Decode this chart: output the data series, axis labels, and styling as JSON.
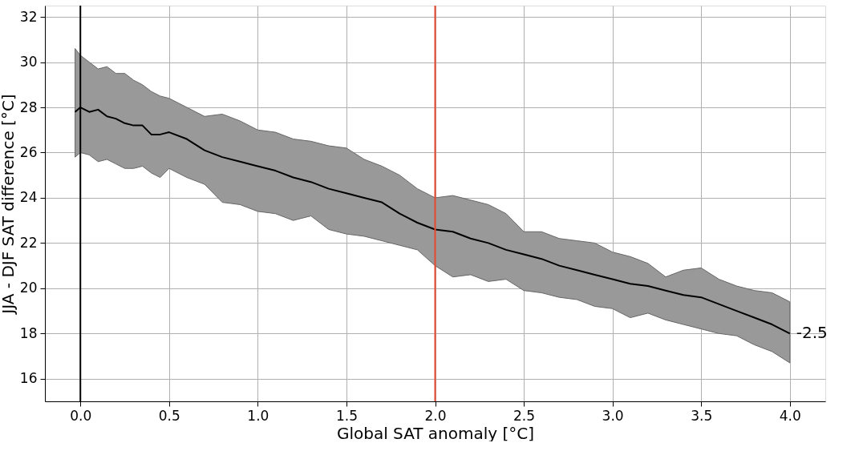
{
  "chart_data": {
    "type": "line",
    "xlabel": "Global SAT anomaly [°C]",
    "ylabel": "JJA - DJF SAT difference [°C]",
    "x": [
      -0.03,
      0.0,
      0.05,
      0.1,
      0.15,
      0.2,
      0.25,
      0.3,
      0.35,
      0.4,
      0.45,
      0.5,
      0.6,
      0.7,
      0.8,
      0.9,
      1.0,
      1.1,
      1.2,
      1.3,
      1.4,
      1.5,
      1.6,
      1.7,
      1.8,
      1.9,
      2.0,
      2.1,
      2.2,
      2.3,
      2.4,
      2.5,
      2.6,
      2.7,
      2.8,
      2.9,
      3.0,
      3.1,
      3.2,
      3.3,
      3.4,
      3.5,
      3.6,
      3.7,
      3.8,
      3.9,
      4.0
    ],
    "series": [
      {
        "color": "#000000",
        "values": [
          27.8,
          28.0,
          27.8,
          27.9,
          27.6,
          27.5,
          27.3,
          27.2,
          27.2,
          26.8,
          26.8,
          26.9,
          26.6,
          26.1,
          25.8,
          25.6,
          25.4,
          25.2,
          24.9,
          24.7,
          24.4,
          24.2,
          24.0,
          23.8,
          23.3,
          22.9,
          22.6,
          22.5,
          22.2,
          22.0,
          21.7,
          21.5,
          21.3,
          21.0,
          20.8,
          20.6,
          20.4,
          20.2,
          20.1,
          19.9,
          19.7,
          19.6,
          19.3,
          19.0,
          18.7,
          18.4,
          18.0
        ],
        "upper": [
          30.6,
          30.3,
          30.0,
          29.7,
          29.8,
          29.5,
          29.5,
          29.2,
          29.0,
          28.7,
          28.5,
          28.4,
          28.0,
          27.6,
          27.7,
          27.4,
          27.0,
          26.9,
          26.6,
          26.5,
          26.3,
          26.2,
          25.7,
          25.4,
          25.0,
          24.4,
          24.0,
          24.1,
          23.9,
          23.7,
          23.3,
          22.5,
          22.5,
          22.2,
          22.1,
          22.0,
          21.6,
          21.4,
          21.1,
          20.5,
          20.8,
          20.9,
          20.4,
          20.1,
          19.9,
          19.8,
          19.4
        ],
        "lower": [
          25.8,
          26.0,
          25.9,
          25.6,
          25.7,
          25.5,
          25.3,
          25.3,
          25.4,
          25.1,
          24.9,
          25.3,
          24.9,
          24.6,
          23.8,
          23.7,
          23.4,
          23.3,
          23.0,
          23.2,
          22.6,
          22.4,
          22.3,
          22.1,
          21.9,
          21.7,
          21.0,
          20.5,
          20.6,
          20.3,
          20.4,
          19.9,
          19.8,
          19.6,
          19.5,
          19.2,
          19.1,
          18.7,
          18.9,
          18.6,
          18.4,
          18.2,
          18.0,
          17.9,
          17.5,
          17.2,
          16.7
        ]
      }
    ],
    "xlim": [
      -0.2,
      4.2
    ],
    "xticks": [
      {
        "value": 0,
        "label": "0.0"
      },
      {
        "value": 0.5,
        "label": "0.5"
      },
      {
        "value": 1,
        "label": "1.0"
      },
      {
        "value": 1.5,
        "label": "1.5"
      },
      {
        "value": 2,
        "label": "2.0"
      },
      {
        "value": 2.5,
        "label": "2.5"
      },
      {
        "value": 3,
        "label": "3.0"
      },
      {
        "value": 3.5,
        "label": "3.5"
      },
      {
        "value": 4,
        "label": "4.0"
      }
    ],
    "ylim": [
      15,
      32.5
    ],
    "yticks": [
      16,
      18,
      20,
      22,
      24,
      26,
      28,
      30,
      32
    ],
    "ref_lines": [
      {
        "axis": "x",
        "value": 0,
        "color": "#000000"
      },
      {
        "axis": "x",
        "value": 2,
        "color": "#e6492d"
      }
    ],
    "annotations": [
      {
        "text": "-2.5",
        "x": 4.0,
        "y": 18.0
      }
    ],
    "grid": true
  }
}
